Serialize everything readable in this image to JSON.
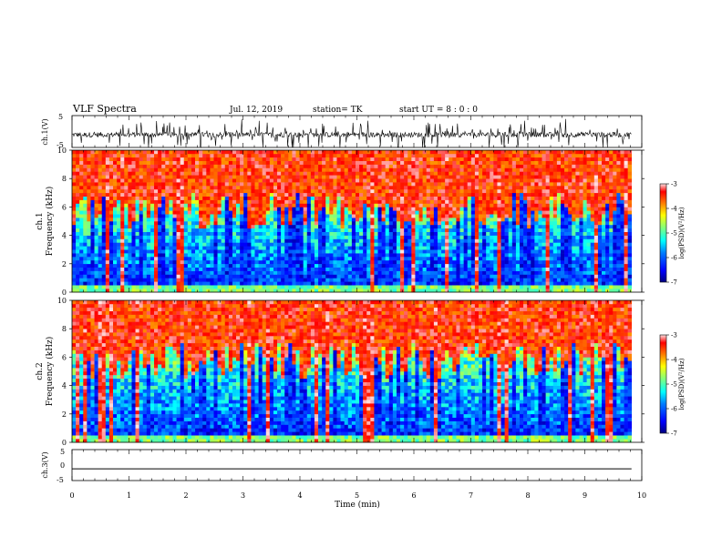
{
  "header": {
    "title": "VLF Spectra",
    "date": "Jul. 12, 2019",
    "station": "station= TK",
    "start_ut": "start UT =  8 : 0 : 0"
  },
  "chart_data": [
    {
      "type": "line",
      "panel": "ch1-waveform",
      "ylabel": "ch.1(V)",
      "ylim": [
        -5,
        5
      ],
      "yticks": [
        "5",
        "-5"
      ],
      "xlim": [
        0,
        10
      ]
    },
    {
      "type": "heatmap",
      "panel": "ch1-spectrogram",
      "ylabel": "ch.1\nFrequency (kHz)",
      "ylabel_line1": "ch.1",
      "ylabel_line2": "Frequency (kHz)",
      "ylim": [
        0,
        10
      ],
      "yticks": [
        "0",
        "2",
        "4",
        "6",
        "8",
        "10"
      ],
      "colorbar": {
        "label": "log(PSD)(V²/Hz)",
        "range": [
          -7,
          -3
        ],
        "ticks": [
          "-3",
          "-4",
          "-5",
          "-6",
          "-7"
        ]
      }
    },
    {
      "type": "heatmap",
      "panel": "ch2-spectrogram",
      "ylabel_line1": "ch.2",
      "ylabel_line2": "Frequency (kHz)",
      "ylim": [
        0,
        10
      ],
      "yticks": [
        "0",
        "2",
        "4",
        "6",
        "8",
        "10"
      ],
      "colorbar": {
        "label": "log(PSD)(V²/Hz)",
        "range": [
          -7,
          -3
        ],
        "ticks": [
          "-3",
          "-4",
          "-5",
          "-6",
          "-7"
        ]
      }
    },
    {
      "type": "line",
      "panel": "ch3-waveform",
      "ylabel": "ch.3(V)",
      "ylim": [
        -5,
        5
      ],
      "yticks": [
        "5",
        "0",
        "-5"
      ],
      "values_constant": -1.2,
      "xlim": [
        0,
        10
      ],
      "xlabel": "Time (min)",
      "xticks": [
        "0",
        "1",
        "2",
        "3",
        "4",
        "5",
        "6",
        "7",
        "8",
        "9",
        "10"
      ]
    }
  ],
  "colors": {
    "jet": [
      "#00007f",
      "#0000ff",
      "#007fff",
      "#00ffff",
      "#7fff7f",
      "#ffff00",
      "#ff7f00",
      "#ff0000",
      "#ffffff"
    ]
  }
}
